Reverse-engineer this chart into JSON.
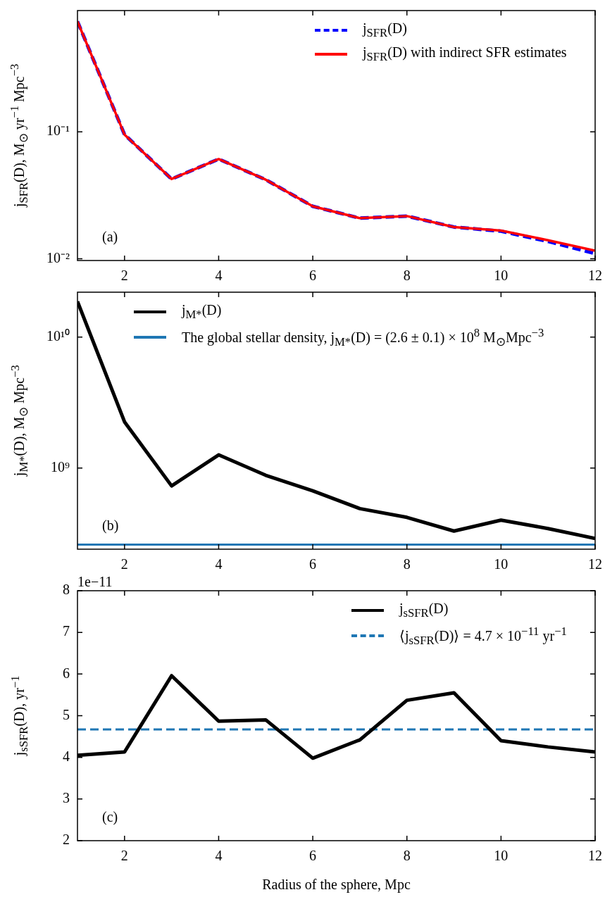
{
  "chart_data": [
    {
      "type": "line",
      "x": [
        1,
        2,
        3,
        4,
        5,
        6,
        7,
        8,
        9,
        10,
        11,
        12
      ],
      "series": [
        {
          "name": "j$_{SFR}$(D)",
          "color": "#0000ff",
          "line_style": "dashed",
          "values": [
            0.74,
            0.095,
            0.0425,
            0.061,
            0.042,
            0.0259,
            0.0209,
            0.0217,
            0.0178,
            0.0165,
            0.0137,
            0.011
          ]
        },
        {
          "name": "j$_{SFR}$(D) with indirect SFR estimates",
          "color": "#ff0000",
          "line_style": "solid",
          "values": [
            0.74,
            0.095,
            0.0425,
            0.061,
            0.042,
            0.0259,
            0.0209,
            0.0217,
            0.0178,
            0.0167,
            0.014,
            0.0116
          ]
        }
      ],
      "log": "y",
      "xlim": [
        1,
        12
      ],
      "xticks": [
        2,
        4,
        6,
        8,
        10,
        12
      ],
      "ylim": [
        0.0097,
        0.9
      ],
      "yticks": [
        {
          "value": 0.01,
          "label": "10⁻²"
        },
        {
          "value": 0.1,
          "label": "10⁻¹"
        }
      ],
      "ylabel": "j$_{SFR}$(D), M$_{⊙}$ yr$^{−1}$ Mpc$^{−3}$",
      "legend": "top right",
      "annotations": [
        "(a)"
      ]
    },
    {
      "type": "line",
      "x": [
        1,
        2,
        3,
        4,
        5,
        6,
        7,
        8,
        9,
        10,
        11,
        12
      ],
      "series": [
        {
          "name": "j$_{M*}$(D)",
          "color": "#000000",
          "line_style": "solid",
          "values": [
            18700000000.0,
            2250000000.0,
            730000000.0,
            1260000000.0,
            880000000.0,
            670000000.0,
            490000000.0,
            420000000.0,
            330000000.0,
            400000000.0,
            345000000.0,
            290000000.0
          ]
        }
      ],
      "ref_lines": [
        {
          "axis": "y",
          "value": 260000000.0,
          "label": "The global stellar density,  j$_{M*}$(D) = (2.6 ± 0.1) × 10$^{8}$ M$_{⊙}$Mpc$^{−3}$",
          "color": "#1f77b4",
          "line_style": "solid"
        }
      ],
      "log": "y",
      "xlim": [
        1,
        12
      ],
      "xticks": [
        2,
        4,
        6,
        8,
        10,
        12
      ],
      "ylim": [
        240000000.0,
        22000000000.0
      ],
      "yticks": [
        {
          "value": 1000000000.0,
          "label": "10⁹"
        },
        {
          "value": 10000000000.0,
          "label": "10¹⁰"
        }
      ],
      "ylabel": "j$_{M*}$(D), M$_{⊙}$ Mpc$^{−3}$",
      "legend": "top left",
      "annotations": [
        "(b)"
      ]
    },
    {
      "type": "line",
      "x": [
        1,
        2,
        3,
        4,
        5,
        6,
        7,
        8,
        9,
        10,
        11,
        12
      ],
      "series": [
        {
          "name": "j$_{sSFR}$(D)",
          "color": "#000000",
          "line_style": "solid",
          "values": [
            4.05,
            4.13,
            5.96,
            4.87,
            4.9,
            3.98,
            4.42,
            5.37,
            5.55,
            4.4,
            4.25,
            4.13
          ]
        }
      ],
      "ref_lines": [
        {
          "axis": "y",
          "value": 4.67,
          "label": "⟨j$_{sSFR}$(D)⟩ = 4.7 × 10$^{−11}$ yr$^{−1}$",
          "color": "#1f77b4",
          "line_style": "dashed"
        }
      ],
      "xlim": [
        1,
        12
      ],
      "xticks": [
        2,
        4,
        6,
        8,
        10,
        12
      ],
      "ylim": [
        2,
        8
      ],
      "yticks": [
        2,
        3,
        4,
        5,
        6,
        7,
        8
      ],
      "ylabel": "j$_{sSFR}$(D), yr$^{−1}$",
      "xlabel": "Radius of the sphere, Mpc",
      "legend": "top right",
      "annotations": [
        "(c)",
        "1e−11"
      ]
    }
  ]
}
